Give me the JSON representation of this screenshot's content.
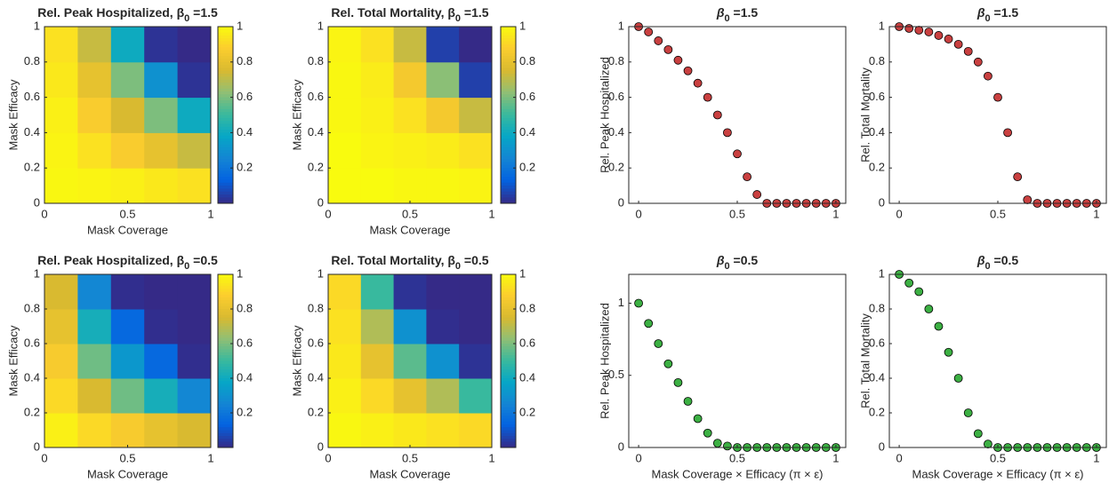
{
  "chart_data": [
    {
      "type": "heatmap",
      "title": [
        "Rel. Peak Hospitalized, β",
        "0",
        " =1.5"
      ],
      "x_label": "Mask Coverage",
      "y_label": "Mask Efficacy",
      "x": [
        0.1,
        0.3,
        0.5,
        0.7,
        0.9
      ],
      "y": [
        0.1,
        0.3,
        0.5,
        0.7,
        0.9
      ],
      "z": [
        [
          0.99,
          0.98,
          0.97,
          0.95,
          0.93
        ],
        [
          0.98,
          0.93,
          0.87,
          0.8,
          0.72
        ],
        [
          0.97,
          0.87,
          0.75,
          0.6,
          0.4
        ],
        [
          0.95,
          0.8,
          0.6,
          0.3,
          0.02
        ],
        [
          0.93,
          0.72,
          0.4,
          0.02,
          0
        ]
      ],
      "xlim": [
        0,
        1
      ],
      "ylim": [
        0,
        1
      ],
      "xticks": [
        0,
        0.5,
        1
      ],
      "yticks": [
        0,
        0.2,
        0.4,
        0.6,
        0.8,
        1
      ],
      "clim": [
        0,
        1
      ],
      "cticks": [
        0.2,
        0.4,
        0.6,
        0.8,
        1
      ]
    },
    {
      "type": "heatmap",
      "title": [
        "Rel. Total Mortality, β",
        "0",
        " =1.5"
      ],
      "x_label": "Mask Coverage",
      "y_label": "Mask Efficacy",
      "x": [
        0.1,
        0.3,
        0.5,
        0.7,
        0.9
      ],
      "y": [
        0.1,
        0.3,
        0.5,
        0.7,
        0.9
      ],
      "z": [
        [
          1,
          1,
          0.99,
          0.99,
          0.98
        ],
        [
          1,
          0.98,
          0.97,
          0.96,
          0.93
        ],
        [
          0.99,
          0.97,
          0.93,
          0.85,
          0.72
        ],
        [
          0.99,
          0.96,
          0.85,
          0.62,
          0.05
        ],
        [
          0.98,
          0.93,
          0.72,
          0.05,
          0
        ]
      ],
      "xlim": [
        0,
        1
      ],
      "ylim": [
        0,
        1
      ],
      "xticks": [
        0,
        0.5,
        1
      ],
      "yticks": [
        0,
        0.2,
        0.4,
        0.6,
        0.8,
        1
      ],
      "clim": [
        0,
        1
      ],
      "cticks": [
        0.2,
        0.4,
        0.6,
        0.8,
        1
      ]
    },
    {
      "type": "heatmap",
      "title": [
        "Rel. Peak Hospitalized, β",
        "0",
        " =0.5"
      ],
      "x_label": "Mask Coverage",
      "y_label": "Mask Efficacy",
      "x": [
        0.1,
        0.3,
        0.5,
        0.7,
        0.9
      ],
      "y": [
        0.1,
        0.3,
        0.5,
        0.7,
        0.9
      ],
      "z": [
        [
          0.97,
          0.91,
          0.86,
          0.8,
          0.75
        ],
        [
          0.91,
          0.75,
          0.58,
          0.42,
          0.26
        ],
        [
          0.86,
          0.58,
          0.32,
          0.15,
          0.01
        ],
        [
          0.8,
          0.42,
          0.15,
          0.01,
          0
        ],
        [
          0.75,
          0.26,
          0.01,
          0,
          0
        ]
      ],
      "xlim": [
        0,
        1
      ],
      "ylim": [
        0,
        1
      ],
      "xticks": [
        0,
        0.5,
        1
      ],
      "yticks": [
        0,
        0.2,
        0.4,
        0.6,
        0.8,
        1
      ],
      "clim": [
        0,
        1
      ],
      "cticks": [
        0.2,
        0.4,
        0.6,
        0.8,
        1
      ]
    },
    {
      "type": "heatmap",
      "title": [
        "Rel. Total Mortality, β",
        "0",
        " =0.5"
      ],
      "x_label": "Mask Coverage",
      "y_label": "Mask Efficacy",
      "x": [
        0.1,
        0.3,
        0.5,
        0.7,
        0.9
      ],
      "y": [
        0.1,
        0.3,
        0.5,
        0.7,
        0.9
      ],
      "z": [
        [
          0.99,
          0.97,
          0.95,
          0.93,
          0.91
        ],
        [
          0.97,
          0.91,
          0.8,
          0.68,
          0.5
        ],
        [
          0.95,
          0.8,
          0.55,
          0.3,
          0.02
        ],
        [
          0.93,
          0.68,
          0.3,
          0.01,
          0
        ],
        [
          0.91,
          0.5,
          0.02,
          0,
          0
        ]
      ],
      "xlim": [
        0,
        1
      ],
      "ylim": [
        0,
        1
      ],
      "xticks": [
        0,
        0.5,
        1
      ],
      "yticks": [
        0,
        0.2,
        0.4,
        0.6,
        0.8,
        1
      ],
      "clim": [
        0,
        1
      ],
      "cticks": [
        0.2,
        0.4,
        0.6,
        0.8,
        1
      ]
    },
    {
      "type": "scatter",
      "title": [
        "β",
        "0",
        " =1.5"
      ],
      "y_label": "Rel. Peak Hospitalized",
      "color": "#c94040",
      "x": [
        0,
        0.05,
        0.1,
        0.15,
        0.2,
        0.25,
        0.3,
        0.35,
        0.4,
        0.45,
        0.5,
        0.55,
        0.6,
        0.65,
        0.7,
        0.75,
        0.8,
        0.85,
        0.9,
        0.95,
        1
      ],
      "values": [
        1,
        0.97,
        0.92,
        0.87,
        0.81,
        0.75,
        0.68,
        0.6,
        0.5,
        0.4,
        0.28,
        0.15,
        0.05,
        0,
        0,
        0,
        0,
        0,
        0,
        0,
        0
      ],
      "xlim": [
        -0.05,
        1.05
      ],
      "ylim": [
        0,
        1
      ],
      "xticks": [
        0,
        0.5,
        1
      ],
      "yticks": [
        0,
        0.2,
        0.4,
        0.6,
        0.8,
        1
      ]
    },
    {
      "type": "scatter",
      "title": [
        "β",
        "0",
        " =1.5"
      ],
      "y_label": "Rel. Total Mortality",
      "color": "#c94040",
      "x": [
        0,
        0.05,
        0.1,
        0.15,
        0.2,
        0.25,
        0.3,
        0.35,
        0.4,
        0.45,
        0.5,
        0.55,
        0.6,
        0.65,
        0.7,
        0.75,
        0.8,
        0.85,
        0.9,
        0.95,
        1
      ],
      "values": [
        1,
        0.99,
        0.98,
        0.97,
        0.95,
        0.93,
        0.9,
        0.86,
        0.8,
        0.72,
        0.6,
        0.4,
        0.15,
        0.02,
        0,
        0,
        0,
        0,
        0,
        0,
        0
      ],
      "xlim": [
        -0.05,
        1.05
      ],
      "ylim": [
        0,
        1
      ],
      "xticks": [
        0,
        0.5,
        1
      ],
      "yticks": [
        0,
        0.2,
        0.4,
        0.6,
        0.8,
        1
      ]
    },
    {
      "type": "scatter",
      "title": [
        "β",
        "0",
        " =0.5"
      ],
      "y_label": "Rel. Peak Hospitalized",
      "x_label": "Mask Coverage × Efficacy (π × ε)",
      "color": "#3cb043",
      "x": [
        0,
        0.05,
        0.1,
        0.15,
        0.2,
        0.25,
        0.3,
        0.35,
        0.4,
        0.45,
        0.5,
        0.55,
        0.6,
        0.65,
        0.7,
        0.75,
        0.8,
        0.85,
        0.9,
        0.95,
        1
      ],
      "values": [
        1,
        0.86,
        0.72,
        0.58,
        0.45,
        0.32,
        0.2,
        0.1,
        0.03,
        0.01,
        0,
        0,
        0,
        0,
        0,
        0,
        0,
        0,
        0,
        0,
        0
      ],
      "xlim": [
        -0.05,
        1.05
      ],
      "ylim": [
        0,
        1.2
      ],
      "xticks": [
        0,
        0.5,
        1
      ],
      "yticks": [
        0,
        0.5,
        1
      ]
    },
    {
      "type": "scatter",
      "title": [
        "β",
        "0",
        " =0.5"
      ],
      "y_label": "Rel. Total Mortality",
      "x_label": "Mask Coverage × Efficacy (π × ε)",
      "color": "#3cb043",
      "x": [
        0,
        0.05,
        0.1,
        0.15,
        0.2,
        0.25,
        0.3,
        0.35,
        0.4,
        0.45,
        0.5,
        0.55,
        0.6,
        0.65,
        0.7,
        0.75,
        0.8,
        0.85,
        0.9,
        0.95,
        1
      ],
      "values": [
        1,
        0.95,
        0.9,
        0.8,
        0.7,
        0.55,
        0.4,
        0.2,
        0.08,
        0.02,
        0,
        0,
        0,
        0,
        0,
        0,
        0,
        0,
        0,
        0,
        0
      ],
      "xlim": [
        -0.05,
        1.05
      ],
      "ylim": [
        0,
        1
      ],
      "xticks": [
        0,
        0.5,
        1
      ],
      "yticks": [
        0,
        0.2,
        0.4,
        0.6,
        0.8,
        1
      ]
    }
  ]
}
